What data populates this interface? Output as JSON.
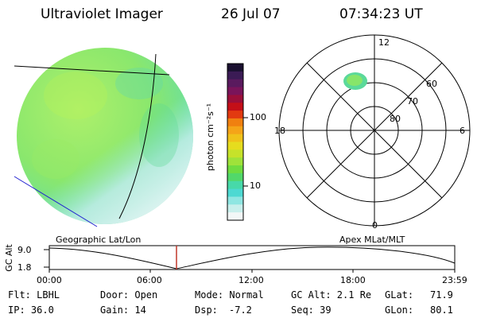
{
  "header": {
    "title": "Ultraviolet Imager",
    "date": "26 Jul 07",
    "time": "07:34:23 UT"
  },
  "colorbar": {
    "unit_label": "photon cm⁻²s⁻¹",
    "ticks": [
      "100",
      "10"
    ],
    "colors": [
      "#1a1030",
      "#3b1b55",
      "#5a1a5e",
      "#7a145a",
      "#9b0f3a",
      "#c40f18",
      "#e23a10",
      "#f08010",
      "#f5a418",
      "#f0c21a",
      "#e6dc1e",
      "#c6e22a",
      "#9fe23a",
      "#6fdc40",
      "#52d86a",
      "#47d9a9",
      "#4dd9d2",
      "#8fe6e2",
      "#c8efec",
      "#f2f7f7"
    ]
  },
  "polar_plot": {
    "mlt_labels": [
      "12",
      "18",
      "6",
      "0"
    ],
    "lat_labels": [
      "60",
      "70",
      "80"
    ]
  },
  "timeline": {
    "left_title": "Geographic Lat/Lon",
    "right_title": "Apex MLat/MLT",
    "y_label": "GC Alt",
    "y_ticks": [
      "9.0",
      "1.8"
    ],
    "x_ticks": [
      "00:00",
      "06:00",
      "12:00",
      "18:00",
      "23:59"
    ]
  },
  "info": {
    "flt": "Flt: LBHL",
    "ip": "IP: 36.0",
    "door": "Door: Open",
    "gain": "Gain: 14",
    "mode": "Mode: Normal",
    "dsp": "Dsp:",
    "dsp_value": "-7.2",
    "gc_alt": "GC Alt: 2.1 Re",
    "seq": "Seq: 39",
    "glat": "GLat:",
    "glat_value": "71.9",
    "glon": "GLon:",
    "glon_value": "80.1"
  },
  "colors": {
    "disk_main": "#8ce86a",
    "disk_light": "#5fdd8a",
    "disk_cyan": "#bfeee8",
    "marker": "#c0392b",
    "blue_line": "#2020d0"
  }
}
